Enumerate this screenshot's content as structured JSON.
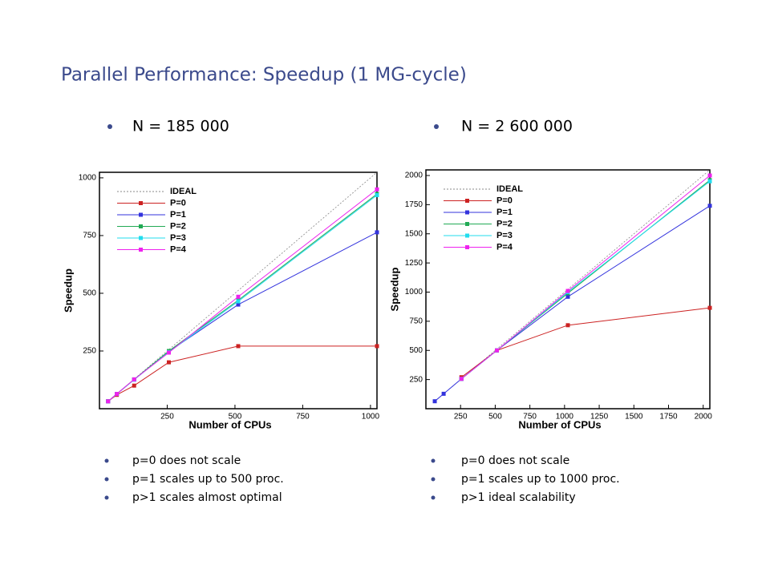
{
  "title": "Parallel Performance: Speedup (1 MG-cycle)",
  "notes": [
    [
      "p=0 does not scale",
      "p=1 scales up to 500 proc.",
      "p>1 scales almost optimal"
    ],
    [
      "p=0 does not scale",
      "p=1 scales up to 1000 proc.",
      "p>1 ideal scalability"
    ]
  ],
  "chart_data": [
    {
      "type": "line",
      "title": "N = 185 000",
      "x_label": "Number of CPUs",
      "y_label": "Speedup",
      "x": [
        32,
        64,
        128,
        256,
        512,
        1024
      ],
      "xlim": [
        0,
        1024
      ],
      "ylim": [
        0,
        1024
      ],
      "xticks": [
        250,
        500,
        750,
        1000
      ],
      "yticks": [
        250,
        500,
        750,
        1000
      ],
      "legend": "upper left",
      "series": [
        {
          "name": "IDEAL",
          "color": "#888888",
          "dashed": true,
          "values": [
            32,
            64,
            128,
            256,
            512,
            1024
          ]
        },
        {
          "name": "P=0",
          "color": "#cc2222",
          "values": [
            32,
            60,
            100,
            201,
            271,
            271
          ]
        },
        {
          "name": "P=1",
          "color": "#3333dd",
          "values": [
            32,
            64,
            126,
            248,
            451,
            764
          ]
        },
        {
          "name": "P=2",
          "color": "#22aa55",
          "values": [
            32,
            64,
            127,
            250,
            470,
            930
          ]
        },
        {
          "name": "P=3",
          "color": "#22ddee",
          "values": [
            32,
            64,
            126,
            245,
            465,
            925
          ]
        },
        {
          "name": "P=4",
          "color": "#ee22ee",
          "values": [
            32,
            64,
            127,
            243,
            485,
            950
          ]
        }
      ]
    },
    {
      "type": "line",
      "title": "N = 2 600 000",
      "x_label": "Number of CPUs",
      "y_label": "Speedup",
      "x": [
        64,
        128,
        256,
        512,
        1024,
        2048
      ],
      "xlim": [
        0,
        2048
      ],
      "ylim": [
        0,
        2048
      ],
      "xticks": [
        250,
        500,
        750,
        1000,
        1250,
        1500,
        1750,
        2000
      ],
      "yticks": [
        250,
        500,
        750,
        1000,
        1250,
        1500,
        1750,
        2000
      ],
      "legend": "upper left",
      "series": [
        {
          "name": "IDEAL",
          "color": "#888888",
          "dashed": true,
          "values": [
            64,
            128,
            256,
            512,
            1024,
            2048
          ]
        },
        {
          "name": "P=0",
          "color": "#cc2222",
          "values": [
            null,
            null,
            270,
            500,
            716,
            865
          ]
        },
        {
          "name": "P=1",
          "color": "#3333dd",
          "values": [
            64,
            128,
            256,
            500,
            960,
            1740
          ]
        },
        {
          "name": "P=2",
          "color": "#22aa55",
          "values": [
            null,
            null,
            256,
            500,
            990,
            1960
          ]
        },
        {
          "name": "P=3",
          "color": "#22ddee",
          "values": [
            null,
            null,
            256,
            500,
            1000,
            1950
          ]
        },
        {
          "name": "P=4",
          "color": "#ee22ee",
          "values": [
            null,
            null,
            256,
            500,
            1010,
            2000
          ]
        }
      ]
    }
  ]
}
